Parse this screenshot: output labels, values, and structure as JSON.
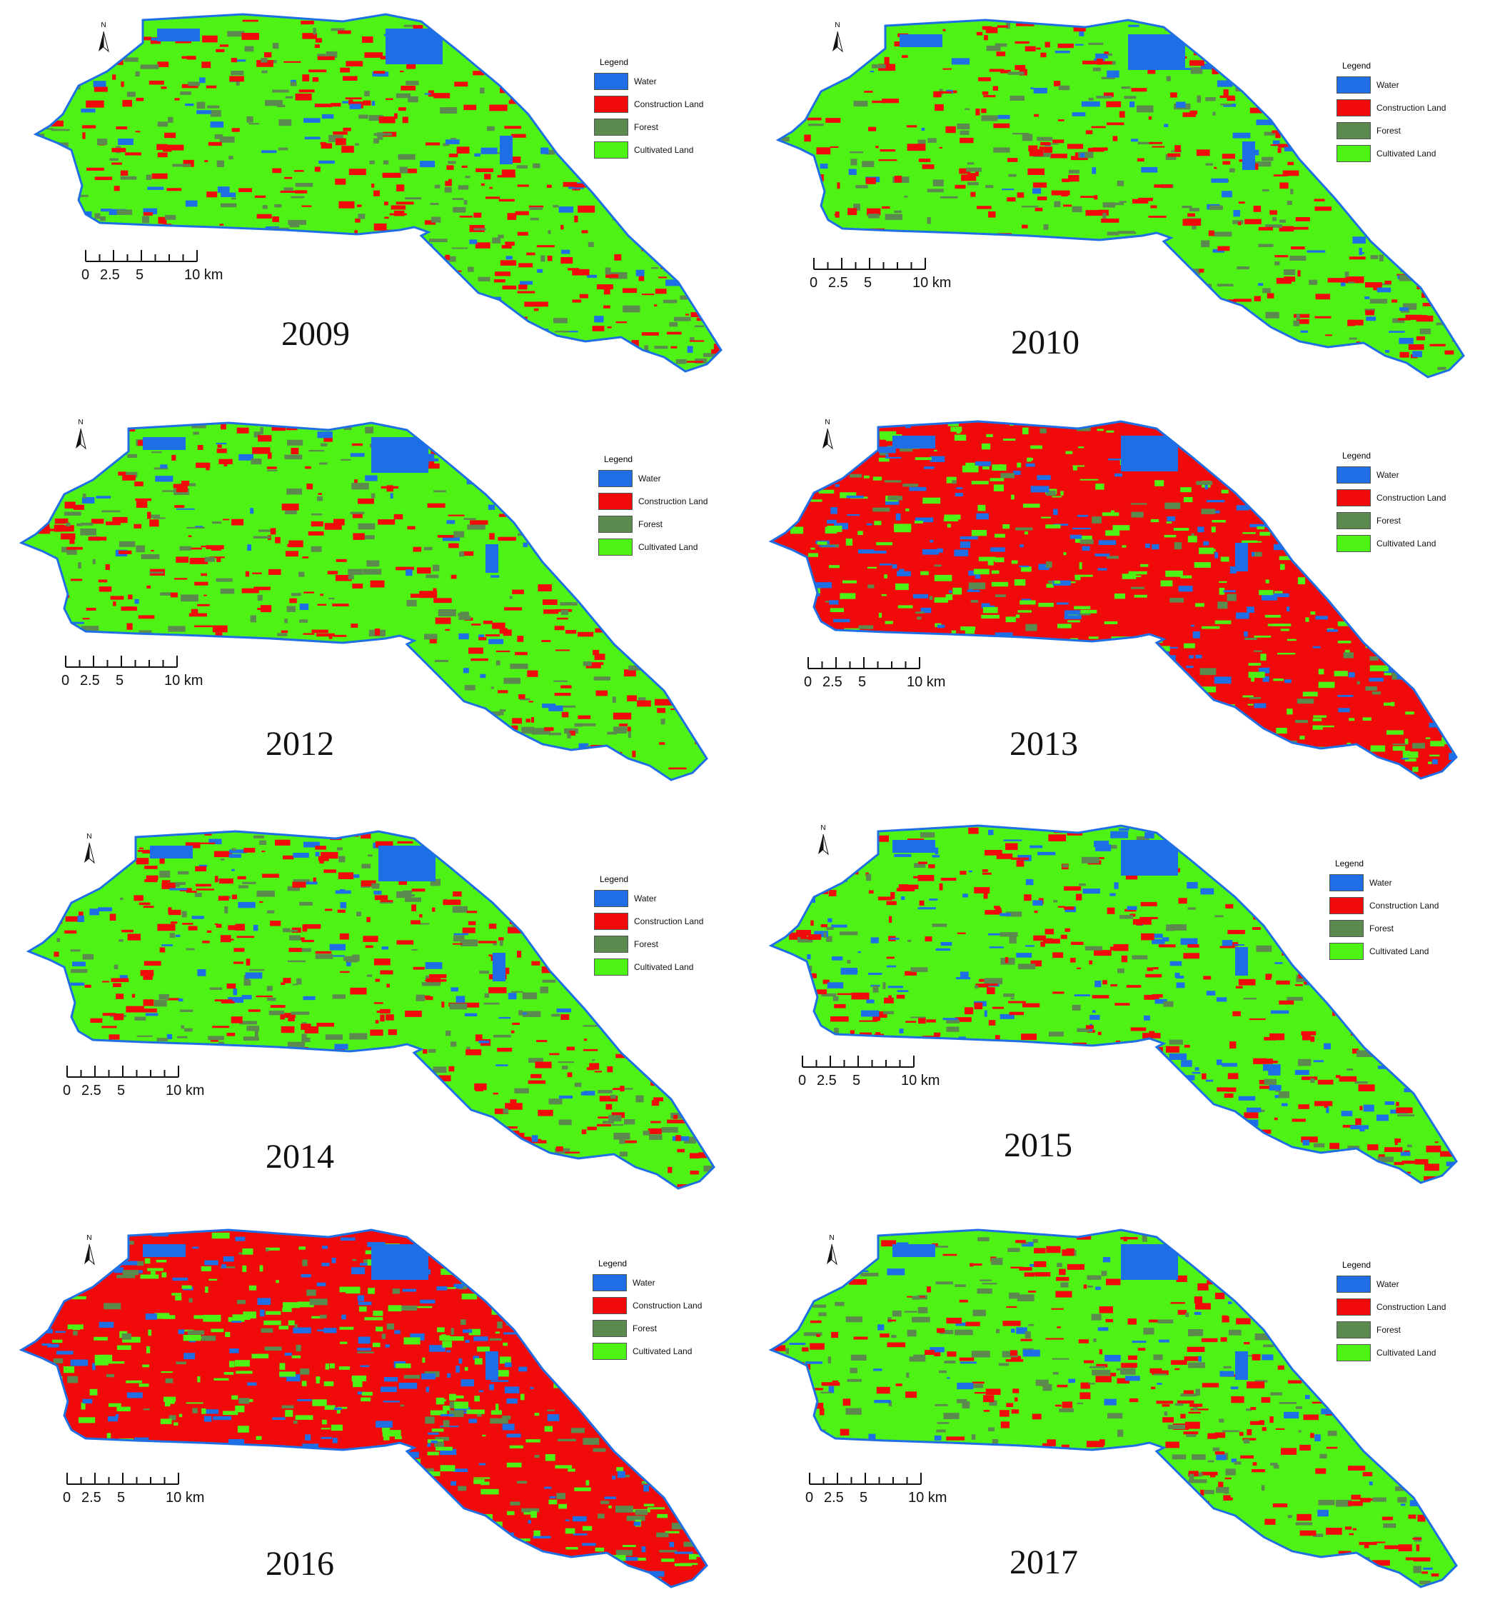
{
  "legend": {
    "title": "Legend",
    "items": [
      {
        "label": "Water",
        "color": "#1E6FE6"
      },
      {
        "label": "Construction Land",
        "color": "#F00A0A"
      },
      {
        "label": "Forest",
        "color": "#5C8A4E"
      },
      {
        "label": "Cultivated Land",
        "color": "#4EF215"
      }
    ]
  },
  "north_arrow": {
    "label": "N"
  },
  "scale_bar": {
    "labels": [
      "0",
      "2.5",
      "5",
      "10 km"
    ]
  },
  "panels": [
    {
      "year": "2009",
      "dominant": "Cultivated Land",
      "water_heavy": false
    },
    {
      "year": "2010",
      "dominant": "Cultivated Land",
      "water_heavy": false
    },
    {
      "year": "2012",
      "dominant": "Cultivated Land",
      "water_heavy": false
    },
    {
      "year": "2013",
      "dominant": "Construction Land",
      "water_heavy": true
    },
    {
      "year": "2014",
      "dominant": "Cultivated Land",
      "water_heavy": false
    },
    {
      "year": "2015",
      "dominant": "Cultivated Land",
      "water_heavy": true
    },
    {
      "year": "2016",
      "dominant": "Construction Land",
      "water_heavy": true
    },
    {
      "year": "2017",
      "dominant": "Cultivated Land",
      "water_heavy": false
    }
  ]
}
